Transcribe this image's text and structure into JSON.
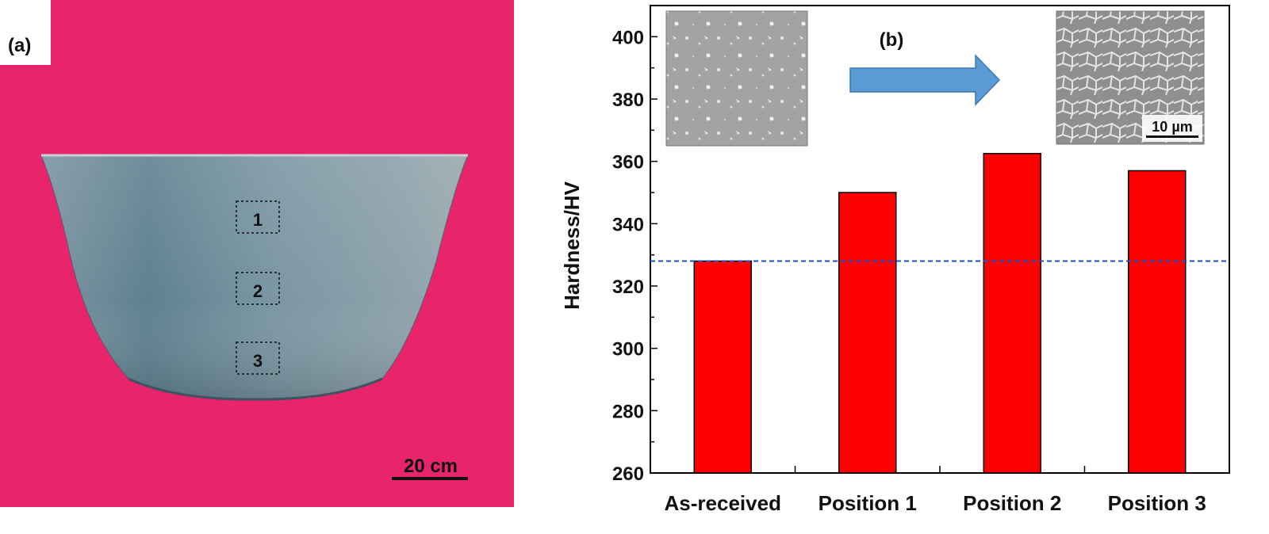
{
  "panel_a": {
    "label": "(a)",
    "scale_bar": "20 cm",
    "positions": [
      "1",
      "2",
      "3"
    ],
    "colors": {
      "background": "#e8246a",
      "part": "#6a8796"
    }
  },
  "panel_b": {
    "label": "(b)",
    "scale_bar": "10 µm",
    "arrow_color": "#5b9bd5"
  },
  "chart_data": {
    "type": "bar",
    "categories": [
      "As-received",
      "Position 1",
      "Position 2",
      "Position 3"
    ],
    "values": [
      328,
      350,
      362.5,
      357
    ],
    "ylabel": "Hardness/HV",
    "xlabel": "",
    "ylim": [
      260,
      410
    ],
    "yticks": [
      260,
      280,
      300,
      320,
      340,
      360,
      380,
      400
    ],
    "reference_line": {
      "value": 328,
      "style": "dashed",
      "color": "#1f4fc9"
    },
    "bar_color": "#ff0000",
    "grid": false
  }
}
